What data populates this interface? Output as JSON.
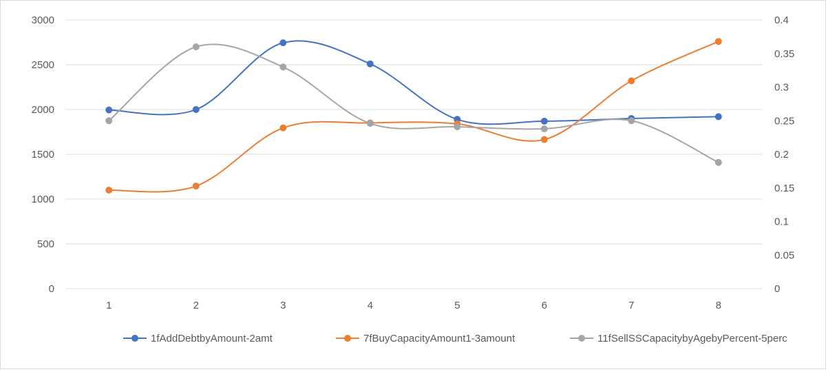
{
  "chart_data": {
    "type": "line",
    "smooth": true,
    "categories": [
      "1",
      "2",
      "3",
      "4",
      "5",
      "6",
      "7",
      "8"
    ],
    "y_left": {
      "range": [
        0,
        3000
      ],
      "ticks": [
        "0",
        "500",
        "1000",
        "1500",
        "2000",
        "2500",
        "3000"
      ]
    },
    "y_right": {
      "range": [
        0,
        0.4
      ],
      "ticks": [
        "0",
        "0.05",
        "0.1",
        "0.15",
        "0.2",
        "0.25",
        "0.3",
        "0.35",
        "0.4"
      ]
    },
    "grid": true,
    "legend_position": "bottom",
    "series": [
      {
        "name": "1fAddDebtbyAmount-2amt",
        "axis": "left",
        "color": "#4472c4",
        "values": [
          1995,
          2000,
          2745,
          2510,
          1890,
          1870,
          1900,
          1920
        ]
      },
      {
        "name": "7fBuyCapacityAmount1-3amount",
        "axis": "left",
        "color": "#ed7d31",
        "values": [
          1100,
          1145,
          1795,
          1850,
          1840,
          1665,
          2320,
          2760
        ]
      },
      {
        "name": "11fSellSSCapacitybyAgebyPercent-5perc",
        "axis": "right",
        "color": "#a5a5a5",
        "values": [
          0.25,
          0.36,
          0.33,
          0.246,
          0.241,
          0.238,
          0.25,
          0.188
        ]
      }
    ]
  }
}
